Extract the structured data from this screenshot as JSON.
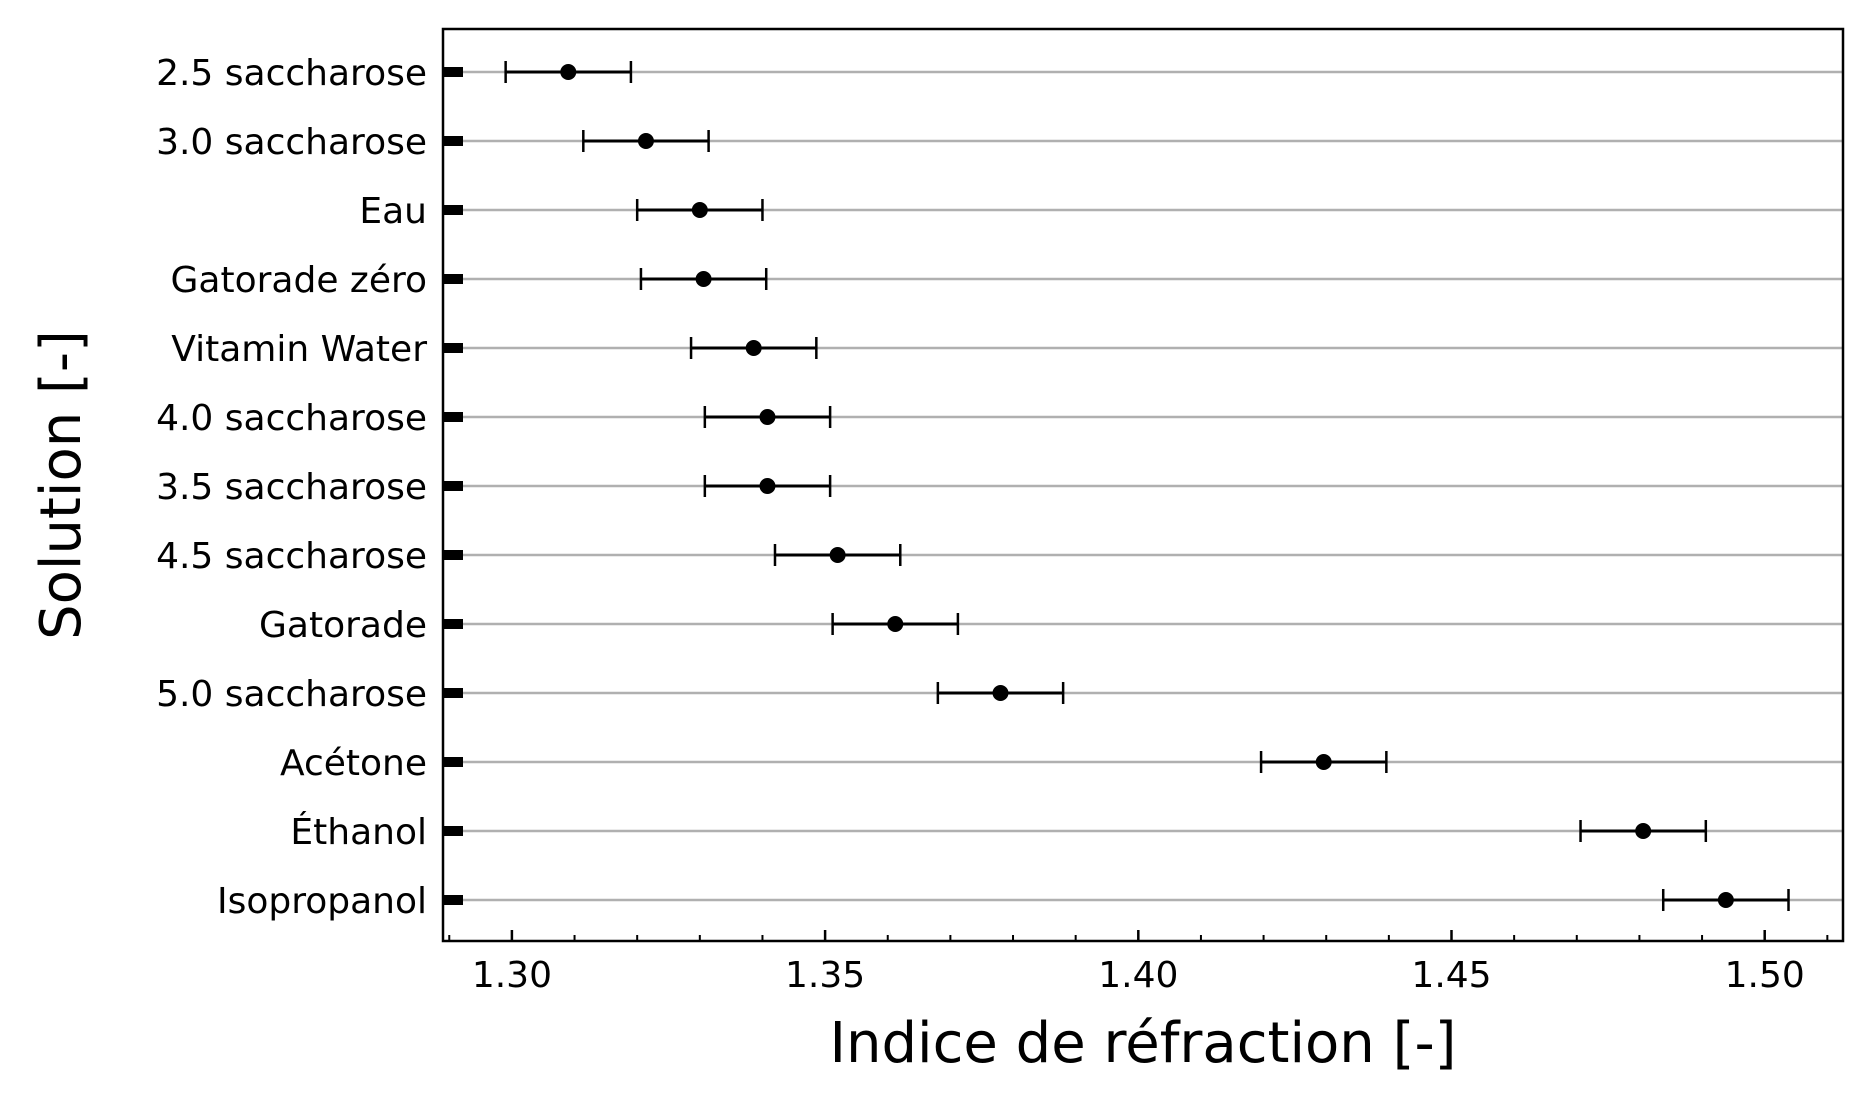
{
  "chart_data": {
    "type": "scatter",
    "orientation": "horizontal",
    "xlabel": "Indice de réfraction [-]",
    "ylabel": "Solution [-]",
    "xlim": [
      1.289,
      1.5125
    ],
    "x_ticks": [
      1.3,
      1.35,
      1.4,
      1.45,
      1.5
    ],
    "x_tick_labels": [
      "1.30",
      "1.35",
      "1.40",
      "1.45",
      "1.50"
    ],
    "grid": "horizontal",
    "legend": "none",
    "categories": [
      "2.5 saccharose",
      "3.0 saccharose",
      "Eau",
      "Gatorade zéro",
      "Vitamin Water",
      "4.0 saccharose",
      "3.5 saccharose",
      "4.5 saccharose",
      "Gatorade",
      "5.0 saccharose",
      "Acétone",
      "Éthanol",
      "Isopropanol"
    ],
    "values": [
      1.309,
      1.3214,
      1.33,
      1.3306,
      1.3386,
      1.3408,
      1.3408,
      1.352,
      1.3612,
      1.378,
      1.4296,
      1.4806,
      1.4938
    ],
    "errors": [
      0.01,
      0.01,
      0.01,
      0.01,
      0.01,
      0.01,
      0.01,
      0.01,
      0.01,
      0.01,
      0.01,
      0.01,
      0.01
    ],
    "colors": {
      "marker": "#000000",
      "grid": "#b0b0b0",
      "axis": "#000000"
    }
  }
}
